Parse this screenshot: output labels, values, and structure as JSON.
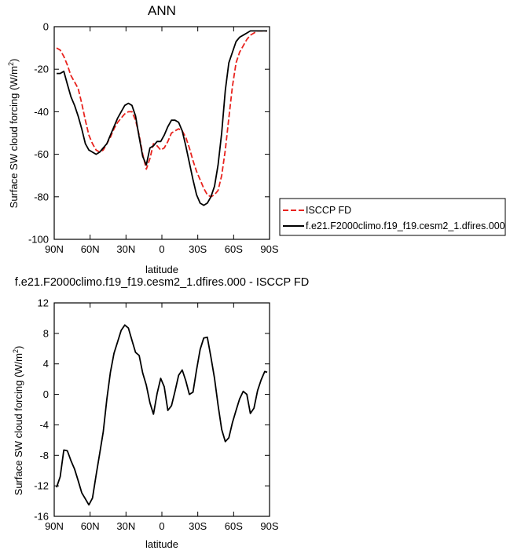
{
  "chart_data": [
    {
      "type": "line",
      "title": "ANN",
      "xlabel": "latitude",
      "ylabel": "Surface SW cloud forcing (W/m",
      "ylabel_sup": "2",
      "ylabel_close": ")",
      "xlim": [
        -90,
        90
      ],
      "ylim": [
        -100,
        0
      ],
      "x_ticks": [
        {
          "v": -90,
          "label": "90N"
        },
        {
          "v": -60,
          "label": "60N"
        },
        {
          "v": -30,
          "label": "30N"
        },
        {
          "v": 0,
          "label": "0"
        },
        {
          "v": 30,
          "label": "30S"
        },
        {
          "v": 60,
          "label": "60S"
        },
        {
          "v": 90,
          "label": "90S"
        }
      ],
      "y_ticks": [
        {
          "v": 0,
          "label": "0"
        },
        {
          "v": -20,
          "label": "-20"
        },
        {
          "v": -40,
          "label": "-40"
        },
        {
          "v": -60,
          "label": "-60"
        },
        {
          "v": -80,
          "label": "-80"
        },
        {
          "v": -100,
          "label": "-100"
        }
      ],
      "legend_position": "right",
      "series": [
        {
          "name": "ISCCP FD",
          "color": "#e8231e",
          "dash": "dashed",
          "x": [
            -88,
            -85,
            -82,
            -79,
            -76,
            -73,
            -70,
            -67,
            -64,
            -61,
            -58,
            -55,
            -52,
            -49,
            -46,
            -43,
            -40,
            -37,
            -34,
            -31,
            -28,
            -25,
            -22,
            -19,
            -16,
            -13,
            -10,
            -7,
            -4,
            -1,
            2,
            5,
            8,
            11,
            14,
            17,
            20,
            23,
            26,
            29,
            32,
            35,
            38,
            41,
            44,
            47,
            50,
            53,
            56,
            59,
            62,
            65,
            68,
            71,
            74,
            77,
            80,
            83,
            86,
            88
          ],
          "y": [
            -10,
            -11,
            -14,
            -18,
            -23,
            -26,
            -29,
            -36,
            -44,
            -51,
            -55,
            -58,
            -59,
            -58,
            -55,
            -52,
            -48,
            -45,
            -43,
            -41,
            -40,
            -40,
            -44,
            -51,
            -60,
            -67,
            -62,
            -55,
            -56,
            -58,
            -57,
            -54,
            -50,
            -49,
            -48,
            -49,
            -52,
            -57,
            -63,
            -68,
            -72,
            -76,
            -79,
            -80,
            -79,
            -77,
            -70,
            -58,
            -43,
            -28,
            -17,
            -12,
            -9,
            -6,
            -4,
            -3,
            -2,
            -2,
            -2,
            -2
          ]
        },
        {
          "name": "f.e21.F2000climo.f19_f19.cesm2_1.dfires.000",
          "color": "#000000",
          "dash": "solid",
          "x": [
            -88,
            -85,
            -82,
            -79,
            -76,
            -73,
            -70,
            -67,
            -64,
            -61,
            -58,
            -55,
            -52,
            -49,
            -46,
            -43,
            -40,
            -37,
            -34,
            -31,
            -28,
            -25,
            -22,
            -19,
            -16,
            -13,
            -10,
            -7,
            -4,
            -1,
            2,
            5,
            8,
            11,
            14,
            17,
            20,
            23,
            26,
            29,
            32,
            35,
            38,
            41,
            44,
            47,
            50,
            53,
            56,
            59,
            62,
            65,
            68,
            71,
            74,
            77,
            80,
            83,
            86,
            88
          ],
          "y": [
            -22,
            -22,
            -21,
            -27,
            -33,
            -37,
            -42,
            -48,
            -55,
            -58,
            -59,
            -60,
            -59,
            -57,
            -55,
            -51,
            -47,
            -43,
            -40,
            -37,
            -36,
            -37,
            -42,
            -52,
            -61,
            -65,
            -57,
            -56,
            -54,
            -54,
            -51,
            -47,
            -44,
            -44,
            -45,
            -49,
            -56,
            -64,
            -72,
            -79,
            -83,
            -84,
            -83,
            -80,
            -75,
            -65,
            -50,
            -30,
            -17,
            -12,
            -7,
            -5,
            -4,
            -3,
            -2,
            -2,
            -2,
            -2,
            -2,
            -2
          ]
        }
      ]
    },
    {
      "type": "line",
      "title": "f.e21.F2000climo.f19_f19.cesm2_1.dfires.000 - ISCCP FD",
      "xlabel": "latitude",
      "ylabel": "Surface SW cloud forcing (W/m",
      "ylabel_sup": "2",
      "ylabel_close": ")",
      "xlim": [
        -90,
        90
      ],
      "ylim": [
        -16,
        12
      ],
      "x_ticks": [
        {
          "v": -90,
          "label": "90N"
        },
        {
          "v": -60,
          "label": "60N"
        },
        {
          "v": -30,
          "label": "30N"
        },
        {
          "v": 0,
          "label": "0"
        },
        {
          "v": 30,
          "label": "30S"
        },
        {
          "v": 60,
          "label": "60S"
        },
        {
          "v": 90,
          "label": "90S"
        }
      ],
      "y_ticks": [
        {
          "v": 12,
          "label": "12"
        },
        {
          "v": 8,
          "label": "8"
        },
        {
          "v": 4,
          "label": "4"
        },
        {
          "v": 0,
          "label": "0"
        },
        {
          "v": -4,
          "label": "-4"
        },
        {
          "v": -8,
          "label": "-8"
        },
        {
          "v": -12,
          "label": "-12"
        },
        {
          "v": -16,
          "label": "-16"
        }
      ],
      "series": [
        {
          "color": "#000000",
          "dash": "solid",
          "x": [
            -88,
            -85,
            -82,
            -79,
            -76,
            -73,
            -70,
            -67,
            -64,
            -61,
            -58,
            -55,
            -52,
            -49,
            -46,
            -43,
            -40,
            -37,
            -34,
            -31,
            -28,
            -25,
            -22,
            -19,
            -16,
            -13,
            -10,
            -7,
            -4,
            -1,
            2,
            5,
            8,
            11,
            14,
            17,
            20,
            23,
            26,
            29,
            32,
            35,
            38,
            41,
            44,
            47,
            50,
            53,
            56,
            59,
            62,
            65,
            68,
            71,
            74,
            77,
            80,
            83,
            86,
            88
          ],
          "y": [
            -12.2,
            -10.8,
            -7.3,
            -7.4,
            -8.7,
            -9.8,
            -11.3,
            -12.9,
            -13.7,
            -14.5,
            -13.6,
            -10.6,
            -7.8,
            -4.9,
            -0.6,
            2.9,
            5.4,
            6.9,
            8.4,
            9.1,
            8.7,
            7.1,
            5.5,
            5.1,
            2.8,
            1.2,
            -1.1,
            -2.6,
            0.1,
            2.1,
            1.0,
            -2.1,
            -1.5,
            0.4,
            2.5,
            3.2,
            1.8,
            0.0,
            0.3,
            3.2,
            5.9,
            7.4,
            7.5,
            4.9,
            2.1,
            -1.4,
            -4.6,
            -6.2,
            -5.7,
            -3.7,
            -2.1,
            -0.6,
            0.4,
            0.0,
            -2.5,
            -1.8,
            0.5,
            1.9,
            3.0,
            2.9
          ]
        }
      ]
    }
  ]
}
